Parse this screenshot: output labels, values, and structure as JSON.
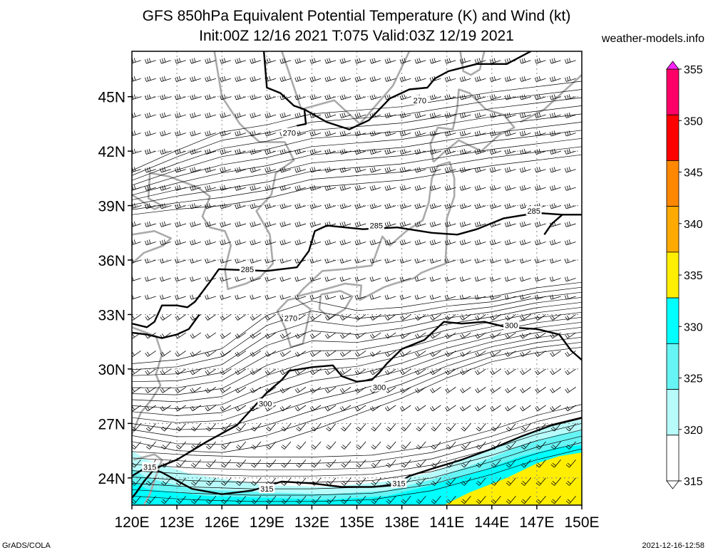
{
  "title_line1": "GFS 850hPa Equivalent Potential Temperature (K) and Wind (kt)",
  "title_line2": "Init:00Z 12/16 2021 T:075 Valid:03Z 12/19 2021",
  "site": "weather-models.info",
  "footer_left": "GrADS/COLA",
  "footer_right": "2021-12-16-12:58",
  "map": {
    "lat_ticks": [
      "45N",
      "42N",
      "39N",
      "36N",
      "33N",
      "30N",
      "27N",
      "24N"
    ],
    "lat_values": [
      45,
      42,
      39,
      36,
      33,
      30,
      27,
      24
    ],
    "lon_ticks": [
      "120E",
      "123E",
      "126E",
      "129E",
      "132E",
      "135E",
      "138E",
      "141E",
      "144E",
      "147E",
      "150E"
    ],
    "lon_values": [
      120,
      123,
      126,
      129,
      132,
      135,
      138,
      141,
      144,
      147,
      150
    ],
    "lat_range": [
      22.5,
      47.5
    ],
    "lon_range": [
      120,
      150
    ],
    "contour_labels": [
      {
        "text": "270",
        "lon": 139.2,
        "lat": 44.8
      },
      {
        "text": "270",
        "lon": 130.5,
        "lat": 43.0
      },
      {
        "text": "285",
        "lon": 146.8,
        "lat": 38.7
      },
      {
        "text": "285",
        "lon": 136.3,
        "lat": 37.9
      },
      {
        "text": "285",
        "lon": 127.7,
        "lat": 35.5
      },
      {
        "text": "270",
        "lon": 130.6,
        "lat": 32.8
      },
      {
        "text": "300",
        "lon": 145.3,
        "lat": 32.4
      },
      {
        "text": "300",
        "lon": 136.5,
        "lat": 29.0
      },
      {
        "text": "300",
        "lon": 128.9,
        "lat": 28.1
      },
      {
        "text": "315",
        "lon": 121.2,
        "lat": 24.6
      },
      {
        "text": "315",
        "lon": 129.0,
        "lat": 23.4
      },
      {
        "text": "315",
        "lon": 137.8,
        "lat": 23.7
      }
    ]
  },
  "colorbar": {
    "labels": [
      "355",
      "350",
      "345",
      "340",
      "335",
      "330",
      "325",
      "320",
      "315"
    ],
    "colors": [
      "#ff22ff",
      "#ff0066",
      "#ff0000",
      "#ff8800",
      "#ffaa00",
      "#ffee00",
      "#00ffff",
      "#66f4f4",
      "#b8fbfb",
      "#ffffff"
    ]
  }
}
